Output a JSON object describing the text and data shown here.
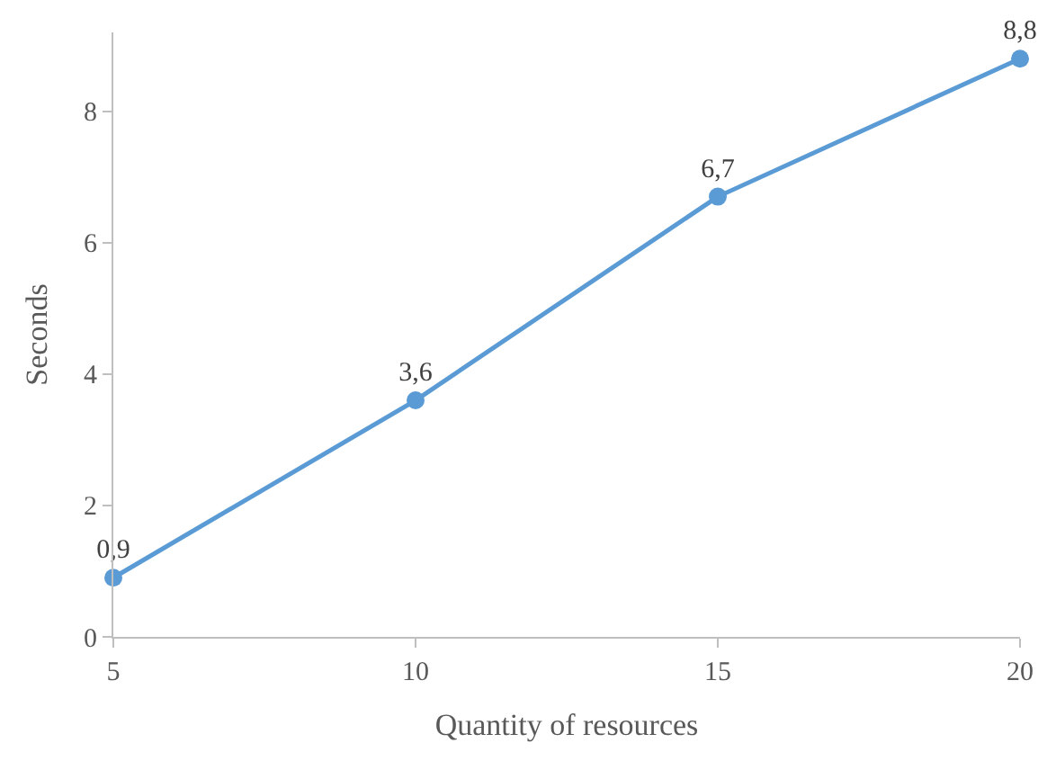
{
  "chart_data": {
    "type": "line",
    "xlabel": "Quantity of resources",
    "ylabel": "Seconds",
    "x": [
      5,
      10,
      15,
      20
    ],
    "series": [
      {
        "color": "#5b9bd5",
        "values": [
          0.9,
          3.6,
          6.7,
          8.8
        ],
        "value_labels": [
          "0,9",
          "3,6",
          "6,7",
          "8,8"
        ]
      }
    ],
    "xlim": [
      5,
      20
    ],
    "xticks": [
      5,
      10,
      15,
      20
    ],
    "ylim": [
      0,
      9.2
    ],
    "yticks": [
      0,
      2,
      4,
      6,
      8
    ],
    "grid": false,
    "legend": false,
    "marker": "circle",
    "line_style": "solid"
  }
}
